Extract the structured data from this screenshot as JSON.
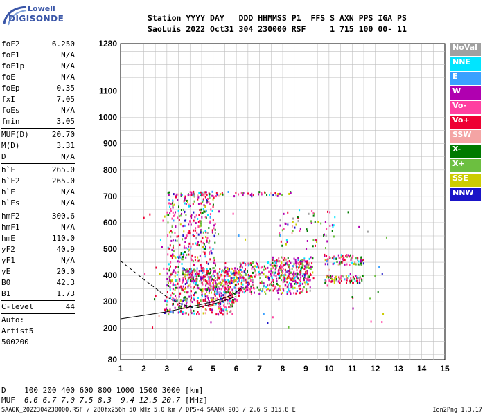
{
  "logo": {
    "line1": "Lowell",
    "line2": "DIGISONDE"
  },
  "header": {
    "row1": "Station YYYY DAY   DDD HHMMSS P1  FFS S AXN PPS IGA PS",
    "row2": "SaoLuis 2022 Oct31 304 230000 RSF     1 715 100 00- 11"
  },
  "params": [
    {
      "label": "foF2",
      "value": "6.250"
    },
    {
      "label": "foF1",
      "value": "N/A"
    },
    {
      "label": "foF1p",
      "value": "N/A"
    },
    {
      "label": "foE",
      "value": "N/A"
    },
    {
      "label": "foEp",
      "value": "0.35"
    },
    {
      "label": "fxI",
      "value": "7.05"
    },
    {
      "label": "foEs",
      "value": "N/A"
    },
    {
      "label": "fmin",
      "value": "3.05"
    },
    {
      "label": "MUF(D)",
      "value": "20.70"
    },
    {
      "label": "M(D)",
      "value": "3.31"
    },
    {
      "label": "D",
      "value": "N/A"
    },
    {
      "label": "h`F",
      "value": "265.0"
    },
    {
      "label": "h`F2",
      "value": "265.0"
    },
    {
      "label": "h`E",
      "value": "N/A"
    },
    {
      "label": "h`Es",
      "value": "N/A"
    },
    {
      "label": "hmF2",
      "value": "300.6"
    },
    {
      "label": "hmF1",
      "value": "N/A"
    },
    {
      "label": "hmE",
      "value": "110.0"
    },
    {
      "label": "yF2",
      "value": "40.9"
    },
    {
      "label": "yF1",
      "value": "N/A"
    },
    {
      "label": "yE",
      "value": "20.0"
    },
    {
      "label": "B0",
      "value": "42.3"
    },
    {
      "label": "B1",
      "value": "1.73"
    },
    {
      "label": "C-level",
      "value": "44"
    }
  ],
  "scaler": {
    "line1": "Auto:",
    "line2": "Artist5",
    "line3": "500200"
  },
  "legend": [
    {
      "label": "NoVal",
      "color": "#a0a0a0"
    },
    {
      "label": "NNE",
      "color": "#00e5ff"
    },
    {
      "label": "E",
      "color": "#3aa0ff"
    },
    {
      "label": "W",
      "color": "#b000b0"
    },
    {
      "label": "Vo-",
      "color": "#ff3fa0"
    },
    {
      "label": "Vo+",
      "color": "#ee0033"
    },
    {
      "label": "SSW",
      "color": "#f4a4a4"
    },
    {
      "label": "X-",
      "color": "#007a00"
    },
    {
      "label": "X+",
      "color": "#6cbf40"
    },
    {
      "label": "SSE",
      "color": "#cccc00"
    },
    {
      "label": "NNW",
      "color": "#1a14c8"
    }
  ],
  "muf_table": {
    "d_label": "D",
    "d_values": [
      "100",
      "200",
      "400",
      "600",
      "800",
      "1000",
      "1500",
      "3000"
    ],
    "d_unit": "[km]",
    "muf_label": "MUF",
    "muf_values": [
      "6.6",
      "6.7",
      "7.0",
      "7.5",
      "8.3",
      "9.4",
      "12.5",
      "20.7"
    ],
    "muf_unit": "[MHz]"
  },
  "footer": {
    "file_info": "SAA0K_2022304230000.RSF / 280fx256h 50 kHz 5.0 km / DPS-4 SAA0K 903 / 2.6 S 315.8 E",
    "version": "Ion2Png 1.3.17"
  },
  "chart_data": {
    "type": "scatter",
    "x_range": [
      1,
      15
    ],
    "y_range": [
      80,
      1280
    ],
    "x_ticks": [
      1,
      2,
      3,
      4,
      5,
      6,
      7,
      8,
      9,
      10,
      11,
      12,
      13,
      14,
      15
    ],
    "y_ticks": [
      80,
      200,
      300,
      400,
      500,
      600,
      700,
      800,
      900,
      1000,
      1100,
      1280
    ],
    "grid": true,
    "clusters": [
      {
        "x": [
          2.9,
          5.9
        ],
        "y": [
          250,
          320
        ],
        "n": 180
      },
      {
        "x": [
          3.0,
          6.2
        ],
        "y": [
          300,
          420
        ],
        "n": 260
      },
      {
        "x": [
          3.0,
          5.1
        ],
        "y": [
          380,
          720
        ],
        "n": 380
      },
      {
        "x": [
          3.8,
          6.5
        ],
        "y": [
          330,
          430
        ],
        "n": 200
      },
      {
        "x": [
          6.0,
          9.2
        ],
        "y": [
          330,
          450
        ],
        "n": 300
      },
      {
        "x": [
          7.5,
          9.3
        ],
        "y": [
          380,
          470
        ],
        "n": 180
      },
      {
        "x": [
          9.8,
          11.5
        ],
        "y": [
          440,
          480
        ],
        "n": 80
      },
      {
        "x": [
          9.8,
          11.5
        ],
        "y": [
          370,
          400
        ],
        "n": 70
      },
      {
        "x": [
          4.0,
          8.4
        ],
        "y": [
          700,
          718
        ],
        "n": 60
      },
      {
        "x": [
          7.8,
          10.3
        ],
        "y": [
          500,
          650
        ],
        "n": 60
      },
      {
        "x": [
          2.0,
          12.5
        ],
        "y": [
          200,
          650
        ],
        "n": 80
      }
    ],
    "traces": [
      {
        "style": "solid",
        "x": [
          1,
          2,
          3,
          4,
          5,
          5.8,
          6.2
        ],
        "y": [
          235,
          248,
          262,
          280,
          300,
          325,
          350
        ]
      },
      {
        "style": "dashed",
        "x": [
          1,
          1.5,
          2,
          2.5,
          3,
          3.5,
          4.2
        ],
        "y": [
          455,
          420,
          385,
          352,
          318,
          295,
          275
        ]
      },
      {
        "style": "solid",
        "x": [
          4.2,
          5.2,
          6.0
        ],
        "y": [
          275,
          296,
          320
        ]
      }
    ]
  }
}
